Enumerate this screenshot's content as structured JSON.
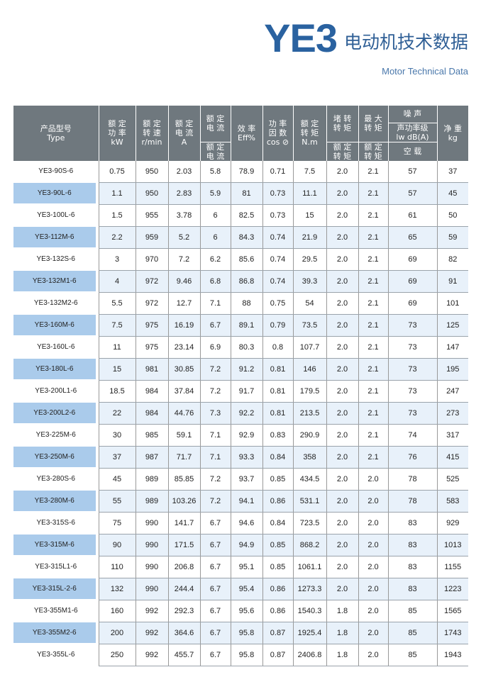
{
  "title": {
    "model": "YE3",
    "cn": "电动机技术数据",
    "en": "Motor Technical Data"
  },
  "header": {
    "type_cn": "产品型号",
    "type_en": "Type",
    "power": [
      "额 定",
      "功 率",
      "kW"
    ],
    "speed": [
      "额 定",
      "转 速",
      "r/min"
    ],
    "current": [
      "额 定",
      "电 流",
      "A"
    ],
    "ratio_i_top": [
      "额 定",
      "电 流"
    ],
    "ratio_i_bot": [
      "额 定",
      "电 流"
    ],
    "eff": [
      "效 率",
      "Eff%"
    ],
    "pf": [
      "功 率",
      "因 数",
      "cos ⊘"
    ],
    "torque": [
      "额 定",
      "转 矩",
      "N.m"
    ],
    "lrt_top": [
      "堵 转",
      "转 矩"
    ],
    "lrt_bot": [
      "额 定",
      "转 矩"
    ],
    "mt_top": [
      "最 大",
      "转 矩"
    ],
    "mt_bot": [
      "额 定",
      "转 矩"
    ],
    "noise": "噪 声",
    "noise_level": [
      "声功率级",
      "lw dB(A)"
    ],
    "noise_cond": "空 载",
    "weight": [
      "净 重",
      "kg"
    ]
  },
  "colors": {
    "header": "#6f787e",
    "alt_row": "#e8f1fa",
    "model_highlight": "#aacbeb",
    "title": "#2a62a0"
  },
  "rows": [
    [
      "YE3-90S-6",
      "0.75",
      "950",
      "2.03",
      "5.8",
      "78.9",
      "0.71",
      "7.5",
      "2.0",
      "2.1",
      "57",
      "37"
    ],
    [
      "YE3-90L-6",
      "1.1",
      "950",
      "2.83",
      "5.9",
      "81",
      "0.73",
      "11.1",
      "2.0",
      "2.1",
      "57",
      "45"
    ],
    [
      "YE3-100L-6",
      "1.5",
      "955",
      "3.78",
      "6",
      "82.5",
      "0.73",
      "15",
      "2.0",
      "2.1",
      "61",
      "50"
    ],
    [
      "YE3-112M-6",
      "2.2",
      "959",
      "5.2",
      "6",
      "84.3",
      "0.74",
      "21.9",
      "2.0",
      "2.1",
      "65",
      "59"
    ],
    [
      "YE3-132S-6",
      "3",
      "970",
      "7.2",
      "6.2",
      "85.6",
      "0.74",
      "29.5",
      "2.0",
      "2.1",
      "69",
      "82"
    ],
    [
      "YE3-132M1-6",
      "4",
      "972",
      "9.46",
      "6.8",
      "86.8",
      "0.74",
      "39.3",
      "2.0",
      "2.1",
      "69",
      "91"
    ],
    [
      "YE3-132M2-6",
      "5.5",
      "972",
      "12.7",
      "7.1",
      "88",
      "0.75",
      "54",
      "2.0",
      "2.1",
      "69",
      "101"
    ],
    [
      "YE3-160M-6",
      "7.5",
      "975",
      "16.19",
      "6.7",
      "89.1",
      "0.79",
      "73.5",
      "2.0",
      "2.1",
      "73",
      "125"
    ],
    [
      "YE3-160L-6",
      "11",
      "975",
      "23.14",
      "6.9",
      "80.3",
      "0.8",
      "107.7",
      "2.0",
      "2.1",
      "73",
      "147"
    ],
    [
      "YE3-180L-6",
      "15",
      "981",
      "30.85",
      "7.2",
      "91.2",
      "0.81",
      "146",
      "2.0",
      "2.1",
      "73",
      "195"
    ],
    [
      "YE3-200L1-6",
      "18.5",
      "984",
      "37.84",
      "7.2",
      "91.7",
      "0.81",
      "179.5",
      "2.0",
      "2.1",
      "73",
      "247"
    ],
    [
      "YE3-200L2-6",
      "22",
      "984",
      "44.76",
      "7.3",
      "92.2",
      "0.81",
      "213.5",
      "2.0",
      "2.1",
      "73",
      "273"
    ],
    [
      "YE3-225M-6",
      "30",
      "985",
      "59.1",
      "7.1",
      "92.9",
      "0.83",
      "290.9",
      "2.0",
      "2.1",
      "74",
      "317"
    ],
    [
      "YE3-250M-6",
      "37",
      "987",
      "71.7",
      "7.1",
      "93.3",
      "0.84",
      "358",
      "2.0",
      "2.1",
      "76",
      "415"
    ],
    [
      "YE3-280S-6",
      "45",
      "989",
      "85.85",
      "7.2",
      "93.7",
      "0.85",
      "434.5",
      "2.0",
      "2.0",
      "78",
      "525"
    ],
    [
      "YE3-280M-6",
      "55",
      "989",
      "103.26",
      "7.2",
      "94.1",
      "0.86",
      "531.1",
      "2.0",
      "2.0",
      "78",
      "583"
    ],
    [
      "YE3-315S-6",
      "75",
      "990",
      "141.7",
      "6.7",
      "94.6",
      "0.84",
      "723.5",
      "2.0",
      "2.0",
      "83",
      "929"
    ],
    [
      "YE3-315M-6",
      "90",
      "990",
      "171.5",
      "6.7",
      "94.9",
      "0.85",
      "868.2",
      "2.0",
      "2.0",
      "83",
      "1013"
    ],
    [
      "YE3-315L1-6",
      "110",
      "990",
      "206.8",
      "6.7",
      "95.1",
      "0.85",
      "1061.1",
      "2.0",
      "2.0",
      "83",
      "1155"
    ],
    [
      "YE3-315L-2-6",
      "132",
      "990",
      "244.4",
      "6.7",
      "95.4",
      "0.86",
      "1273.3",
      "2.0",
      "2.0",
      "83",
      "1223"
    ],
    [
      "YE3-355M1-6",
      "160",
      "992",
      "292.3",
      "6.7",
      "95.6",
      "0.86",
      "1540.3",
      "1.8",
      "2.0",
      "85",
      "1565"
    ],
    [
      "YE3-355M2-6",
      "200",
      "992",
      "364.6",
      "6.7",
      "95.8",
      "0.87",
      "1925.4",
      "1.8",
      "2.0",
      "85",
      "1743"
    ],
    [
      "YE3-355L-6",
      "250",
      "992",
      "455.7",
      "6.7",
      "95.8",
      "0.87",
      "2406.8",
      "1.8",
      "2.0",
      "85",
      "1943"
    ]
  ]
}
